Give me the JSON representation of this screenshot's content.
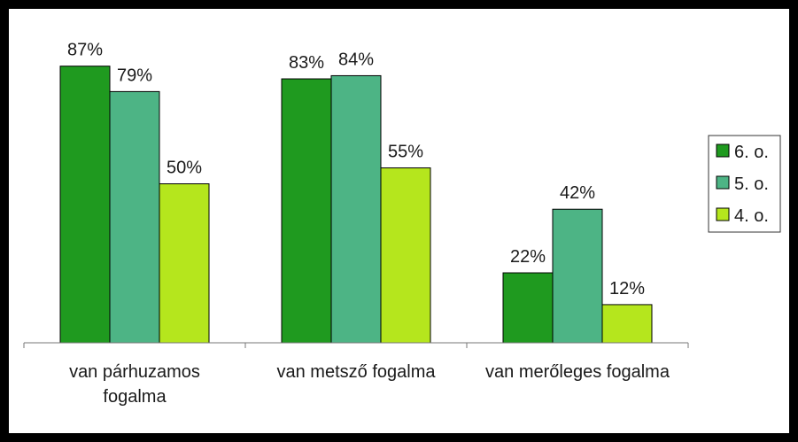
{
  "chart_data": {
    "type": "bar",
    "categories": [
      "van párhuzamos fogalma",
      "van metsző fogalma",
      "van merőleges fogalma"
    ],
    "category_lines": [
      [
        "van párhuzamos",
        "fogalma"
      ],
      [
        "van metsző fogalma"
      ],
      [
        "van merőleges fogalma"
      ]
    ],
    "series": [
      {
        "name": "6. o.",
        "color": "#1f9a1f",
        "values": [
          87,
          83,
          22
        ]
      },
      {
        "name": "5. o.",
        "color": "#4db485",
        "values": [
          79,
          84,
          42
        ]
      },
      {
        "name": "4. o.",
        "color": "#b5e61d",
        "values": [
          50,
          55,
          12
        ]
      }
    ],
    "value_suffix": "%",
    "ylim": [
      0,
      100
    ],
    "legend": "right",
    "grid": false,
    "title": "",
    "xlabel": "",
    "ylabel": ""
  }
}
